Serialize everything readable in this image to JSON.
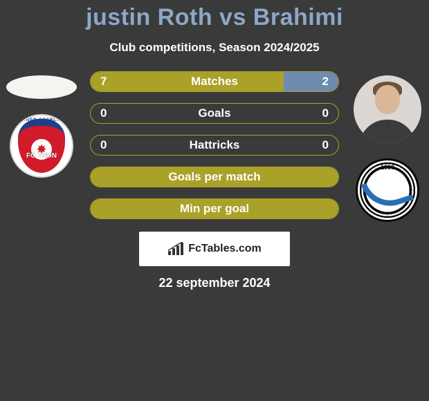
{
  "title": {
    "text": "justin Roth vs Brahimi",
    "color": "#8da7c7",
    "fontsize": 34
  },
  "subtitle": {
    "text": "Club competitions, Season 2024/2025",
    "color": "#ffffff",
    "fontsize": 17
  },
  "colors": {
    "background": "#3a3a3a",
    "text": "#ffffff",
    "fill_primary": "#aaa128",
    "fill_secondary": "#6e8bb0",
    "row_border": "#aaa128"
  },
  "players": {
    "left": {
      "name": "justin Roth",
      "club": "FC Thun",
      "club_short": "FC THUN"
    },
    "right": {
      "name": "Brahimi",
      "club": "FC Wil 1900",
      "club_short": "WIL"
    }
  },
  "stats": [
    {
      "label": "Matches",
      "left_value": "7",
      "right_value": "2",
      "left_pct": 78,
      "right_pct": 22,
      "left_fill": "#aaa128",
      "right_fill": "#6e8bb0",
      "show_left": true,
      "show_right": true
    },
    {
      "label": "Goals",
      "left_value": "0",
      "right_value": "0",
      "left_pct": 0,
      "right_pct": 0,
      "left_fill": "#aaa128",
      "right_fill": "#6e8bb0",
      "show_left": true,
      "show_right": true
    },
    {
      "label": "Hattricks",
      "left_value": "0",
      "right_value": "0",
      "left_pct": 0,
      "right_pct": 0,
      "left_fill": "#aaa128",
      "right_fill": "#6e8bb0",
      "show_left": true,
      "show_right": true
    },
    {
      "label": "Goals per match",
      "left_value": "",
      "right_value": "",
      "left_pct": 100,
      "right_pct": 0,
      "left_fill": "#aaa128",
      "right_fill": "#6e8bb0",
      "show_left": false,
      "show_right": false
    },
    {
      "label": "Min per goal",
      "left_value": "",
      "right_value": "",
      "left_pct": 100,
      "right_pct": 0,
      "left_fill": "#aaa128",
      "right_fill": "#6e8bb0",
      "show_left": false,
      "show_right": false
    }
  ],
  "watermark": {
    "text": "FcTables.com"
  },
  "date": {
    "text": "22 september 2024"
  }
}
